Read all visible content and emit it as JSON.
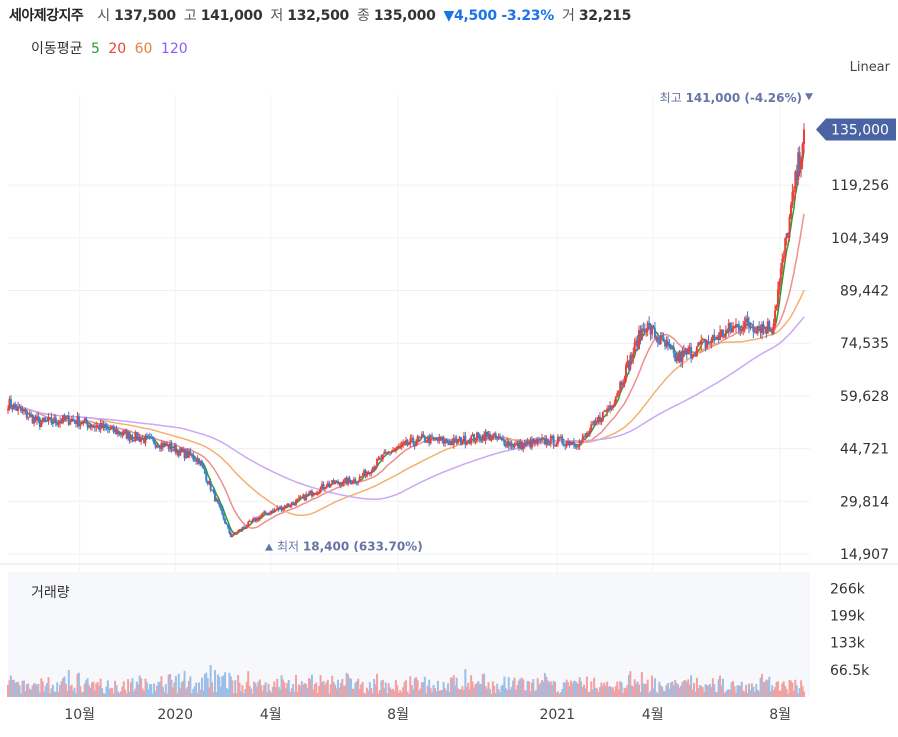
{
  "header": {
    "stock_name": "세아제강지주",
    "open_label": "시",
    "open": "137,500",
    "high_label": "고",
    "high": "141,000",
    "low_label": "저",
    "low": "132,500",
    "close_label": "종",
    "close": "135,000",
    "change": "▼4,500 -3.23%",
    "volume_label": "거",
    "volume": "32,215"
  },
  "ma_legend": {
    "label": "이동평균",
    "items": [
      {
        "text": "5",
        "color": "#2e9b2e"
      },
      {
        "text": "20",
        "color": "#e8413c"
      },
      {
        "text": "60",
        "color": "#e8823c"
      },
      {
        "text": "120",
        "color": "#8a5cf0"
      }
    ]
  },
  "scale_mode": "Linear",
  "volume_title": "거래량",
  "colors": {
    "up": "#e8413c",
    "down": "#3e7cc9",
    "ma5": "#2e9b2e",
    "ma20": "#f08e8e",
    "ma60": "#f4b070",
    "ma120": "#c8a8f8",
    "price_tag": "#4a63a3",
    "annotation": "#6675a8"
  },
  "chart_data": {
    "type": "candlestick",
    "title": "세아제강지주",
    "y_axis_ticks": [
      "14,907",
      "29,814",
      "44,721",
      "59,628",
      "74,535",
      "89,442",
      "104,349",
      "119,256"
    ],
    "ylim": [
      14907,
      141000
    ],
    "x_axis_ticks": [
      "10월",
      "2020",
      "4월",
      "8월",
      "2021",
      "4월",
      "8월"
    ],
    "current_price_label": "135,000",
    "current_price": 135000,
    "high_annotation": {
      "label": "최고",
      "value": "141,000 (-4.26%)",
      "price": 141000
    },
    "low_annotation": {
      "label": "최저",
      "value": "18,400 (633.70%)",
      "price": 18400
    },
    "volume_ticks": [
      "266k",
      "199k",
      "133k",
      "66.5k"
    ],
    "price_series": [
      {
        "x": "2019-08",
        "close": 57500
      },
      {
        "x": "2019-09",
        "close": 52000
      },
      {
        "x": "2019-10",
        "close": 53000
      },
      {
        "x": "2019-11",
        "close": 50500
      },
      {
        "x": "2019-12",
        "close": 48000
      },
      {
        "x": "2020-01",
        "close": 45500
      },
      {
        "x": "2020-02",
        "close": 41500
      },
      {
        "x": "2020-03",
        "close": 20000
      },
      {
        "x": "2020-04",
        "close": 26000
      },
      {
        "x": "2020-05",
        "close": 29500
      },
      {
        "x": "2020-06",
        "close": 34500
      },
      {
        "x": "2020-07",
        "close": 36000
      },
      {
        "x": "2020-08",
        "close": 44000
      },
      {
        "x": "2020-09",
        "close": 47500
      },
      {
        "x": "2020-10",
        "close": 46500
      },
      {
        "x": "2020-11",
        "close": 48500
      },
      {
        "x": "2020-12",
        "close": 45500
      },
      {
        "x": "2021-01",
        "close": 47000
      },
      {
        "x": "2021-02",
        "close": 46500
      },
      {
        "x": "2021-03",
        "close": 58000
      },
      {
        "x": "2021-04",
        "close": 80000
      },
      {
        "x": "2021-05",
        "close": 70000
      },
      {
        "x": "2021-06",
        "close": 75000
      },
      {
        "x": "2021-07",
        "close": 80000
      },
      {
        "x": "2021-08",
        "close": 79000
      },
      {
        "x": "2021-09",
        "close": 135000
      }
    ]
  }
}
